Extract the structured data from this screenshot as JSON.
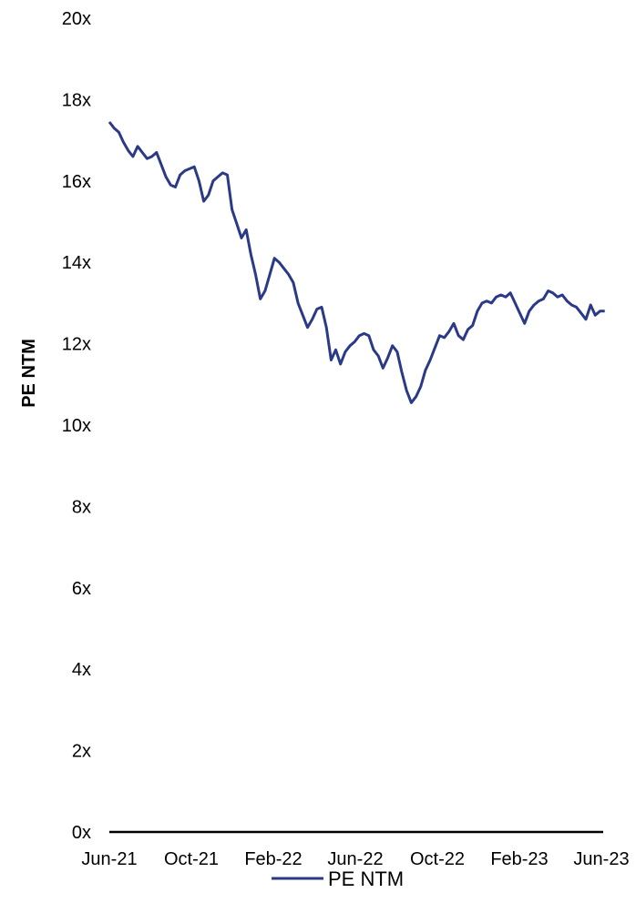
{
  "chart_data": {
    "type": "line",
    "title": "",
    "xlabel": "",
    "ylabel": "PE NTM",
    "ylim": [
      0,
      20
    ],
    "y_ticks": [
      "0x",
      "2x",
      "4x",
      "6x",
      "8x",
      "10x",
      "12x",
      "14x",
      "16x",
      "18x",
      "20x"
    ],
    "x_ticks": [
      "Jun-21",
      "Oct-21",
      "Feb-22",
      "Jun-22",
      "Oct-22",
      "Feb-23",
      "Jun-23"
    ],
    "grid": false,
    "legend_position": "bottom",
    "colors": {
      "line": "#2B3A87",
      "axis": "#000000"
    },
    "series": [
      {
        "name": "PE NTM",
        "x": [
          "2021-06-01",
          "2021-06-08",
          "2021-06-15",
          "2021-06-22",
          "2021-06-29",
          "2021-07-06",
          "2021-07-13",
          "2021-07-20",
          "2021-07-27",
          "2021-08-03",
          "2021-08-10",
          "2021-08-17",
          "2021-08-24",
          "2021-08-31",
          "2021-09-07",
          "2021-09-14",
          "2021-09-21",
          "2021-09-28",
          "2021-10-05",
          "2021-10-12",
          "2021-10-19",
          "2021-10-26",
          "2021-11-02",
          "2021-11-09",
          "2021-11-16",
          "2021-11-23",
          "2021-11-30",
          "2021-12-07",
          "2021-12-14",
          "2021-12-21",
          "2021-12-28",
          "2022-01-04",
          "2022-01-11",
          "2022-01-18",
          "2022-01-25",
          "2022-02-01",
          "2022-02-08",
          "2022-02-15",
          "2022-02-22",
          "2022-03-01",
          "2022-03-08",
          "2022-03-15",
          "2022-03-22",
          "2022-03-29",
          "2022-04-05",
          "2022-04-12",
          "2022-04-19",
          "2022-04-26",
          "2022-05-03",
          "2022-05-10",
          "2022-05-17",
          "2022-05-24",
          "2022-05-31",
          "2022-06-07",
          "2022-06-14",
          "2022-06-21",
          "2022-06-28",
          "2022-07-05",
          "2022-07-12",
          "2022-07-19",
          "2022-07-26",
          "2022-08-02",
          "2022-08-09",
          "2022-08-16",
          "2022-08-23",
          "2022-08-30",
          "2022-09-06",
          "2022-09-13",
          "2022-09-20",
          "2022-09-27",
          "2022-10-04",
          "2022-10-11",
          "2022-10-18",
          "2022-10-25",
          "2022-11-01",
          "2022-11-08",
          "2022-11-15",
          "2022-11-22",
          "2022-11-29",
          "2022-12-06",
          "2022-12-13",
          "2022-12-20",
          "2022-12-27",
          "2023-01-03",
          "2023-01-10",
          "2023-01-17",
          "2023-01-24",
          "2023-01-31",
          "2023-02-07",
          "2023-02-14",
          "2023-02-21",
          "2023-02-28",
          "2023-03-07",
          "2023-03-14",
          "2023-03-21",
          "2023-03-28",
          "2023-04-04",
          "2023-04-11",
          "2023-04-18",
          "2023-04-25",
          "2023-05-02",
          "2023-05-09",
          "2023-05-16",
          "2023-05-23",
          "2023-05-30",
          "2023-06-06"
        ],
        "values": [
          17.45,
          17.3,
          17.2,
          16.95,
          16.75,
          16.6,
          16.85,
          16.7,
          16.55,
          16.6,
          16.7,
          16.4,
          16.1,
          15.9,
          15.85,
          16.15,
          16.25,
          16.3,
          16.35,
          16.0,
          15.5,
          15.65,
          16.0,
          16.1,
          16.2,
          16.15,
          15.3,
          14.95,
          14.6,
          14.8,
          14.2,
          13.7,
          13.1,
          13.3,
          13.7,
          14.1,
          14.0,
          13.85,
          13.7,
          13.5,
          13.0,
          12.7,
          12.4,
          12.6,
          12.85,
          12.9,
          12.4,
          11.6,
          11.85,
          11.5,
          11.8,
          11.95,
          12.05,
          12.2,
          12.25,
          12.2,
          11.85,
          11.7,
          11.4,
          11.65,
          11.95,
          11.8,
          11.3,
          10.85,
          10.55,
          10.7,
          10.95,
          11.35,
          11.6,
          11.9,
          12.2,
          12.15,
          12.3,
          12.5,
          12.2,
          12.1,
          12.35,
          12.45,
          12.8,
          13.0,
          13.05,
          13.0,
          13.15,
          13.2,
          13.15,
          13.25,
          13.0,
          12.75,
          12.5,
          12.8,
          12.95,
          13.05,
          13.1,
          13.3,
          13.25,
          13.15,
          13.2,
          13.05,
          12.95,
          12.9,
          12.75,
          12.6,
          12.95,
          12.7,
          12.8,
          12.8
        ]
      }
    ]
  }
}
